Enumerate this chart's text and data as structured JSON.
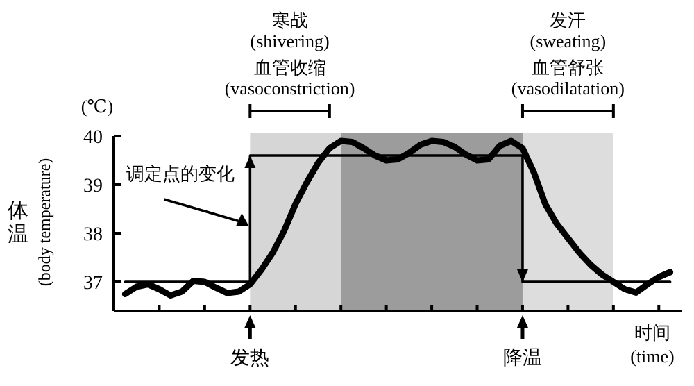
{
  "chart_data": {
    "type": "line",
    "ylabel": "体温 (body temperature)",
    "xlabel": "时间\n(time)",
    "ylim": [
      36.4,
      40
    ],
    "yticks": [
      37,
      38,
      39,
      40
    ],
    "categories": [
      null,
      null,
      null,
      null,
      null,
      null,
      null,
      null,
      null,
      null,
      null,
      null,
      null,
      null,
      null,
      null,
      null,
      null,
      null,
      null,
      null,
      null,
      null,
      null,
      null,
      null,
      null,
      null,
      null,
      null,
      null,
      null,
      null,
      null,
      null,
      null,
      null,
      null,
      null,
      null,
      null,
      null,
      null,
      null,
      null,
      null,
      null,
      null,
      null
    ],
    "series": [
      {
        "color": "#000000",
        "values": [
          36.75,
          36.9,
          36.95,
          36.85,
          36.72,
          36.8,
          37.02,
          37.0,
          36.88,
          36.77,
          36.8,
          36.95,
          37.25,
          37.6,
          38.05,
          38.6,
          39.05,
          39.45,
          39.75,
          39.9,
          39.88,
          39.75,
          39.6,
          39.5,
          39.52,
          39.65,
          39.82,
          39.9,
          39.88,
          39.78,
          39.62,
          39.5,
          39.52,
          39.8,
          39.9,
          39.75,
          39.25,
          38.6,
          38.2,
          37.9,
          37.6,
          37.35,
          37.15,
          37.0,
          36.85,
          36.78,
          36.95,
          37.1,
          37.2
        ]
      },
      {
        "color": "#000000",
        "type": "step",
        "values": [
          37,
          37,
          37,
          37,
          37,
          37,
          37,
          37,
          37,
          37,
          37,
          39.6,
          39.6,
          39.6,
          39.6,
          39.6,
          39.6,
          39.6,
          39.6,
          39.6,
          39.6,
          39.6,
          39.6,
          39.6,
          39.6,
          39.6,
          39.6,
          39.6,
          39.6,
          39.6,
          39.6,
          39.6,
          39.6,
          39.6,
          39.6,
          37,
          37,
          37,
          37,
          37,
          37,
          37,
          37,
          37,
          37,
          37,
          37,
          37,
          37
        ]
      }
    ],
    "annotations": [
      "寒战\n(shivering)\n血管收缩\n(vasoconstriction)",
      "发汗\n(sweating)\n血管舒张\n(vasodilatation)",
      "(℃)",
      "调定点的变化",
      "发热",
      "降温"
    ],
    "grid": false
  }
}
